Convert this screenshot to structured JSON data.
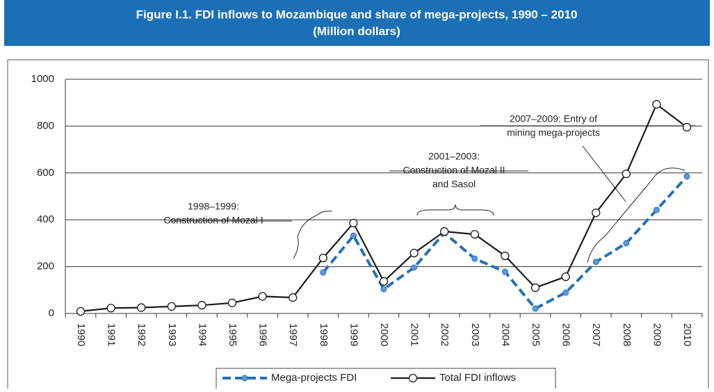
{
  "chart_data": {
    "type": "line",
    "title": "Figure I.1. FDI inflows to Mozambique and share of mega-projects, 1990 – 2010",
    "subtitle": "(Million dollars)",
    "categories": [
      "1990",
      "1991",
      "1992",
      "1993",
      "1994",
      "1995",
      "1996",
      "1997",
      "1998",
      "1999",
      "2000",
      "2001",
      "2002",
      "2003",
      "2004",
      "2005",
      "2006",
      "2007",
      "2008",
      "2009",
      "2010"
    ],
    "series": [
      {
        "name": "Mega-projects FDI",
        "color": "#2471b5",
        "dashed": true,
        "values": [
          null,
          null,
          null,
          null,
          null,
          null,
          null,
          null,
          175,
          332,
          104,
          196,
          344,
          234,
          178,
          21,
          89,
          220,
          300,
          442,
          585
        ]
      },
      {
        "name": "Total FDI inflows",
        "color": "#1a1a1a",
        "dashed": false,
        "values": [
          9,
          23,
          25,
          30,
          35,
          45,
          73,
          68,
          237,
          386,
          137,
          258,
          350,
          338,
          246,
          110,
          157,
          430,
          596,
          893,
          795
        ]
      }
    ],
    "ylim": [
      0,
      1000
    ],
    "yticks": [
      0,
      200,
      400,
      600,
      800,
      1000
    ],
    "grid": true,
    "annotations": [
      {
        "lines": [
          "1998–1999:",
          "Construction of Mozal I"
        ]
      },
      {
        "lines": [
          "2001–2003:",
          "Construction of Mozal II",
          "and Sasol"
        ]
      },
      {
        "lines": [
          "2007–2009: Entry of",
          "mining mega-projects"
        ]
      }
    ]
  }
}
